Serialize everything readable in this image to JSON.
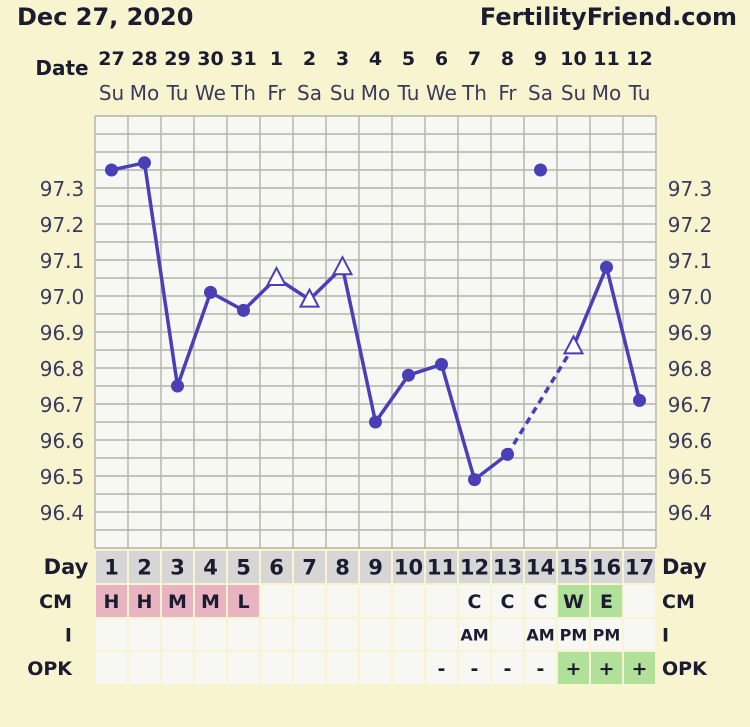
{
  "header": {
    "date": "Dec 27, 2020",
    "site": "FertilityFriend.com"
  },
  "labels": {
    "date": "Date",
    "day": "Day",
    "cm": "CM",
    "i": "I",
    "opk": "OPK"
  },
  "colors": {
    "background": "#f8f4d0",
    "line": "#4a3fb5",
    "grid": "#b3b3ad",
    "text": "#1c1c30",
    "axis_text": "#3a3a5c",
    "cell": "#f7f7f4",
    "menses": "#e8b4c2",
    "fertile": "#b0e09a",
    "day_row": "#d6d6d6"
  },
  "chart_data": {
    "type": "line",
    "title": "",
    "xlabel": "",
    "ylabel": "",
    "ylim": [
      96.3,
      97.5
    ],
    "yticks": [
      "97.3",
      "97.2",
      "97.1",
      "97.0",
      "96.9",
      "96.8",
      "96.7",
      "96.6",
      "96.5",
      "96.4"
    ],
    "dates": [
      "27",
      "28",
      "29",
      "30",
      "31",
      "1",
      "2",
      "3",
      "4",
      "5",
      "6",
      "7",
      "8",
      "9",
      "10",
      "11",
      "12"
    ],
    "weekdays": [
      "Su",
      "Mo",
      "Tu",
      "We",
      "Th",
      "Fr",
      "Sa",
      "Su",
      "Mo",
      "Tu",
      "We",
      "Th",
      "Fr",
      "Sa",
      "Su",
      "Mo",
      "Tu"
    ],
    "cycle_days": [
      "1",
      "2",
      "3",
      "4",
      "5",
      "6",
      "7",
      "8",
      "9",
      "10",
      "11",
      "12",
      "13",
      "14",
      "15",
      "16",
      "17"
    ],
    "temps": [
      97.35,
      97.37,
      96.75,
      97.01,
      96.96,
      97.05,
      96.99,
      97.08,
      96.65,
      96.78,
      96.81,
      96.49,
      96.56,
      97.35,
      96.86,
      97.08,
      96.71
    ],
    "markers": [
      "dot",
      "dot",
      "dot",
      "dot",
      "dot",
      "triangle",
      "triangle",
      "triangle",
      "dot",
      "dot",
      "dot",
      "dot",
      "dot",
      "dot",
      "triangle",
      "dot",
      "dot"
    ],
    "excluded_days": [
      14
    ],
    "dashed_segments": [
      [
        13,
        15
      ]
    ],
    "cm": [
      "H",
      "H",
      "M",
      "M",
      "L",
      "",
      "",
      "",
      "",
      "",
      "",
      "C",
      "C",
      "C",
      "W",
      "E",
      ""
    ],
    "intercourse": [
      "",
      "",
      "",
      "",
      "",
      "",
      "",
      "",
      "",
      "",
      "",
      "AM",
      "",
      "AM",
      "PM",
      "PM",
      ""
    ],
    "opk": [
      "",
      "",
      "",
      "",
      "",
      "",
      "",
      "",
      "",
      "",
      "-",
      "-",
      "-",
      "-",
      "+",
      "+",
      "+"
    ],
    "menses_days": [
      1,
      2,
      3,
      4,
      5
    ],
    "fertile_cm_days": [
      15,
      16
    ],
    "positive_opk_days": [
      15,
      16,
      17
    ]
  }
}
